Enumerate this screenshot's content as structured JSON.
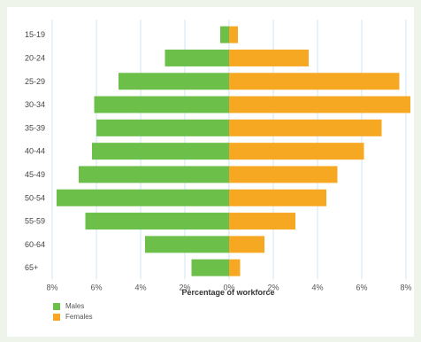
{
  "chart_data": {
    "type": "bar",
    "orientation": "horizontal",
    "layout": "population-pyramid",
    "categories": [
      "15-19",
      "20-24",
      "25-29",
      "30-34",
      "35-39",
      "40-44",
      "45-49",
      "50-54",
      "55-59",
      "60-64",
      "65+"
    ],
    "series": [
      {
        "name": "Males",
        "color": "#6cc04a",
        "side": "left",
        "values": [
          0.4,
          2.9,
          5.0,
          6.1,
          6.0,
          6.2,
          6.8,
          7.8,
          6.5,
          3.8,
          1.7
        ]
      },
      {
        "name": "Females",
        "color": "#f7a823",
        "side": "right",
        "values": [
          0.4,
          3.6,
          7.7,
          8.2,
          6.9,
          6.1,
          4.9,
          4.4,
          3.0,
          1.6,
          0.5
        ]
      }
    ],
    "xlabel": "Percentage of workforce",
    "xlim": [
      -8,
      8
    ],
    "x_ticks": [
      {
        "value": -8,
        "label": "8%"
      },
      {
        "value": -6,
        "label": "6%"
      },
      {
        "value": -4,
        "label": "4%"
      },
      {
        "value": -2,
        "label": "2%"
      },
      {
        "value": 0,
        "label": "0%"
      },
      {
        "value": 2,
        "label": "2%"
      },
      {
        "value": 4,
        "label": "4%"
      },
      {
        "value": 6,
        "label": "6%"
      },
      {
        "value": 8,
        "label": "8%"
      }
    ],
    "grid": "vertical",
    "gridline_color": "#cfe7f4",
    "legend_position": "bottom-left"
  }
}
